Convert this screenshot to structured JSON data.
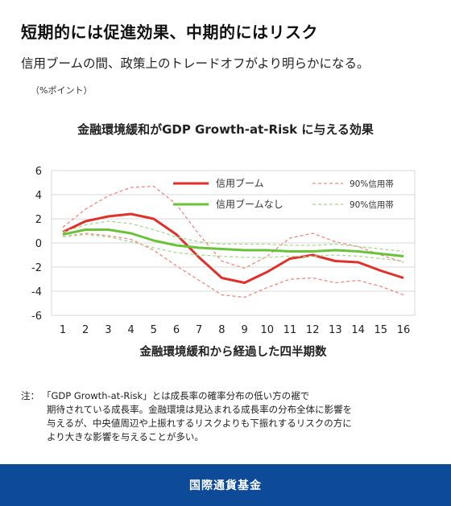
{
  "headline": "短期的には促進効果、中期的にはリスク",
  "subheadline": "信用ブームの間、政策上のトレードオフがより明らかになる。",
  "unit_label": "（%ポイント）",
  "note": {
    "label": "注：",
    "lines": [
      "「GDP Growth-at-Risk」とは成長率の確率分布の低い方の裾で",
      "期待されている成長率。金融環境は見込まれる成長率の分布全体に影響を",
      "与えるが、中央値周辺や上振れするリスクよりも下振れするリスクの方に",
      "より大きな影響を与えることが多い。"
    ]
  },
  "footer": {
    "org": "国際通貨基金"
  },
  "colors": {
    "boom": "#e0302a",
    "boom_band": "#f08a80",
    "noboom": "#6ac23a",
    "noboom_band": "#a8d890",
    "grid": "#d9d9d9",
    "footer_bg": "#0d4a98"
  },
  "chart_data": {
    "type": "line",
    "title": "金融環境緩和がGDP Growth-at-Risk に与える効果",
    "xlabel": "金融環境緩和から経過した四半期数",
    "ylabel": "",
    "x": [
      1,
      2,
      3,
      4,
      5,
      6,
      7,
      8,
      9,
      10,
      11,
      12,
      13,
      14,
      15,
      16
    ],
    "xlim": [
      1,
      16
    ],
    "ylim": [
      -6,
      6
    ],
    "yticks": [
      -6,
      -4,
      -2,
      0,
      2,
      4,
      6
    ],
    "grid": "horizontal",
    "legend": "top-right",
    "series": [
      {
        "name": "信用ブーム",
        "style": "solid",
        "color_key": "boom",
        "values": [
          0.9,
          1.8,
          2.2,
          2.4,
          2.0,
          0.7,
          -1.2,
          -2.9,
          -3.3,
          -2.4,
          -1.3,
          -1.0,
          -1.5,
          -1.6,
          -2.3,
          -2.9
        ]
      },
      {
        "name": "90%信用帯",
        "style": "dashed",
        "color_key": "boom_band",
        "values": [
          1.3,
          2.8,
          3.9,
          4.6,
          4.7,
          3.2,
          0.7,
          -1.5,
          -2.1,
          -1.1,
          0.4,
          0.8,
          0.1,
          -0.3,
          -1.0,
          -1.6
        ]
      },
      {
        "name": "",
        "style": "dashed",
        "color_key": "boom_band",
        "values": [
          0.5,
          0.8,
          0.6,
          0.3,
          -0.6,
          -1.9,
          -3.1,
          -4.3,
          -4.5,
          -3.7,
          -3.0,
          -2.9,
          -3.3,
          -3.1,
          -3.6,
          -4.3
        ]
      },
      {
        "name": "信用ブームなし",
        "style": "solid",
        "color_key": "noboom",
        "values": [
          0.7,
          1.1,
          1.1,
          0.8,
          0.2,
          -0.2,
          -0.4,
          -0.5,
          -0.6,
          -0.6,
          -0.7,
          -0.7,
          -0.6,
          -0.7,
          -0.9,
          -1.1
        ]
      },
      {
        "name": "90%信用帯",
        "style": "dashed",
        "color_key": "noboom_band",
        "values": [
          0.9,
          1.5,
          1.8,
          1.6,
          1.1,
          0.5,
          0.1,
          -0.1,
          -0.1,
          -0.1,
          -0.2,
          -0.2,
          -0.1,
          -0.3,
          -0.5,
          -0.7
        ]
      },
      {
        "name": "",
        "style": "dashed",
        "color_key": "noboom_band",
        "values": [
          0.5,
          0.7,
          0.5,
          0.1,
          -0.4,
          -0.8,
          -1.0,
          -1.1,
          -1.2,
          -1.2,
          -1.1,
          -1.1,
          -1.0,
          -1.1,
          -1.3,
          -1.5
        ]
      }
    ]
  }
}
